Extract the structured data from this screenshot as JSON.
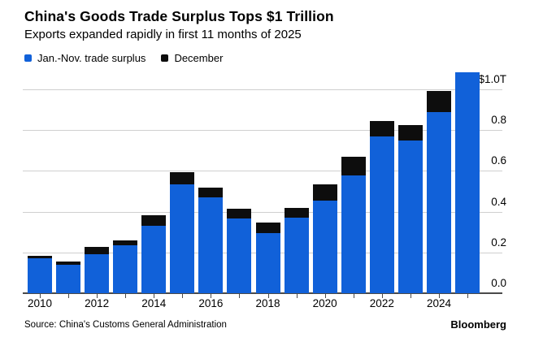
{
  "header": {
    "title": "China's Goods Trade Surplus Tops $1 Trillion",
    "subtitle": "Exports expanded rapidly in first 11 months of 2025"
  },
  "legend": {
    "items": [
      {
        "label": "Jan.-Nov. trade surplus",
        "color": "#1161d9"
      },
      {
        "label": "December",
        "color": "#0d0d0d"
      }
    ]
  },
  "footer": {
    "source": "Source: China's Customs General Administration",
    "brand": "Bloomberg"
  },
  "colors": {
    "jan_nov_bar": "#1161d9",
    "december_bar": "#0d0d0d",
    "gridline": "#cfcfcf",
    "axis_line": "#4a4a4a",
    "text": "#000000",
    "background": "#ffffff"
  },
  "chart_data": {
    "type": "bar",
    "stacked": true,
    "title": "China's Goods Trade Surplus Tops $1 Trillion",
    "subtitle": "Exports expanded rapidly in first 11 months of 2025",
    "xlabel": "",
    "ylabel": "",
    "ylim": [
      0,
      1.1
    ],
    "grid": "horizontal",
    "legend_position": "top-left",
    "y_axis_side": "right",
    "categories": [
      "2010",
      "2011",
      "2012",
      "2013",
      "2014",
      "2015",
      "2016",
      "2017",
      "2018",
      "2019",
      "2020",
      "2021",
      "2022",
      "2023",
      "2024",
      "2025"
    ],
    "series": [
      {
        "name": "Jan.-Nov. trade surplus",
        "color": "#1161d9",
        "values": [
          0.17,
          0.14,
          0.192,
          0.236,
          0.332,
          0.535,
          0.469,
          0.367,
          0.294,
          0.372,
          0.456,
          0.578,
          0.768,
          0.748,
          0.89,
          1.083
        ]
      },
      {
        "name": "December",
        "color": "#0d0d0d",
        "values": [
          0.013,
          0.016,
          0.035,
          0.024,
          0.05,
          0.06,
          0.046,
          0.049,
          0.053,
          0.048,
          0.079,
          0.093,
          0.075,
          0.075,
          0.102,
          0
        ]
      }
    ],
    "y_ticks": [
      0,
      0.2,
      0.4,
      0.6,
      0.8,
      1.0
    ],
    "y_tick_labels": [
      "0.0",
      "0.2",
      "0.4",
      "0.6",
      "0.8",
      "$1.0T"
    ],
    "x_tick_labels": [
      "2010",
      "2012",
      "2014",
      "2016",
      "2018",
      "2020",
      "2022",
      "2024"
    ]
  }
}
